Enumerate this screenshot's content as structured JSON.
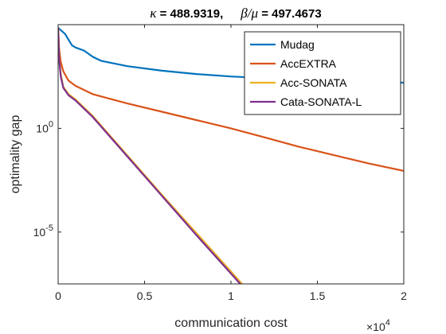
{
  "chart_data": {
    "type": "line",
    "title": {
      "kappa_symbol": "κ",
      "kappa_value": " = 488.9319,",
      "beta_symbol": "β",
      "slash": "/",
      "mu_symbol": "μ",
      "beta_mu_value": " = 497.4673"
    },
    "xlabel": "communication cost",
    "ylabel": "optimality gap",
    "x_exponent_base": "×10",
    "x_exponent": "4",
    "xlim": [
      0,
      20000
    ],
    "ylog": true,
    "ylim_log10": [
      -7.5,
      5
    ],
    "x_ticks": [
      {
        "value": 0,
        "label": "0"
      },
      {
        "value": 5000,
        "label": "0.5"
      },
      {
        "value": 10000,
        "label": "1"
      },
      {
        "value": 15000,
        "label": "1.5"
      },
      {
        "value": 20000,
        "label": "2"
      }
    ],
    "y_ticks": [
      {
        "log10": 0,
        "base": "10",
        "exp": "0"
      },
      {
        "log10": -5,
        "base": "10",
        "exp": "-5"
      }
    ],
    "grid": false,
    "legend_position": "top-right",
    "series": [
      {
        "name": "Mudag",
        "color": "#0072BD",
        "points": [
          [
            0,
            4.85
          ],
          [
            400,
            4.55
          ],
          [
            800,
            4.0
          ],
          [
            1000,
            3.9
          ],
          [
            1500,
            3.75
          ],
          [
            2000,
            3.45
          ],
          [
            2500,
            3.25
          ],
          [
            4000,
            3.0
          ],
          [
            6000,
            2.78
          ],
          [
            8000,
            2.62
          ],
          [
            10000,
            2.5
          ],
          [
            12000,
            2.42
          ],
          [
            14000,
            2.35
          ],
          [
            16000,
            2.29
          ],
          [
            18000,
            2.24
          ],
          [
            20000,
            2.2
          ]
        ]
      },
      {
        "name": "AccEXTRA",
        "color": "#D95319",
        "points": [
          [
            0,
            4.85
          ],
          [
            60,
            3.8
          ],
          [
            150,
            3.2
          ],
          [
            300,
            2.75
          ],
          [
            600,
            2.3
          ],
          [
            1000,
            2.05
          ],
          [
            2000,
            1.65
          ],
          [
            4000,
            1.2
          ],
          [
            6000,
            0.8
          ],
          [
            8000,
            0.4
          ],
          [
            10000,
            0.0
          ],
          [
            12000,
            -0.45
          ],
          [
            14000,
            -0.9
          ],
          [
            16000,
            -1.3
          ],
          [
            18000,
            -1.7
          ],
          [
            20000,
            -2.05
          ]
        ]
      },
      {
        "name": "Acc-SONATA",
        "color": "#EDB120",
        "points": [
          [
            0,
            4.85
          ],
          [
            60,
            3.4
          ],
          [
            150,
            2.6
          ],
          [
            300,
            2.0
          ],
          [
            600,
            1.65
          ],
          [
            1000,
            1.4
          ],
          [
            2000,
            0.6
          ],
          [
            4000,
            -1.3
          ],
          [
            6000,
            -3.2
          ],
          [
            8000,
            -5.05
          ],
          [
            10000,
            -6.9
          ],
          [
            11500,
            -8.3
          ]
        ]
      },
      {
        "name": "Cata-SONATA-L",
        "color": "#7E2F8E",
        "points": [
          [
            0,
            4.85
          ],
          [
            60,
            3.3
          ],
          [
            150,
            2.5
          ],
          [
            300,
            1.95
          ],
          [
            600,
            1.6
          ],
          [
            1000,
            1.35
          ],
          [
            2000,
            0.55
          ],
          [
            4000,
            -1.35
          ],
          [
            6000,
            -3.25
          ],
          [
            8000,
            -5.15
          ],
          [
            10000,
            -7.0
          ],
          [
            11500,
            -8.4
          ]
        ]
      }
    ]
  }
}
